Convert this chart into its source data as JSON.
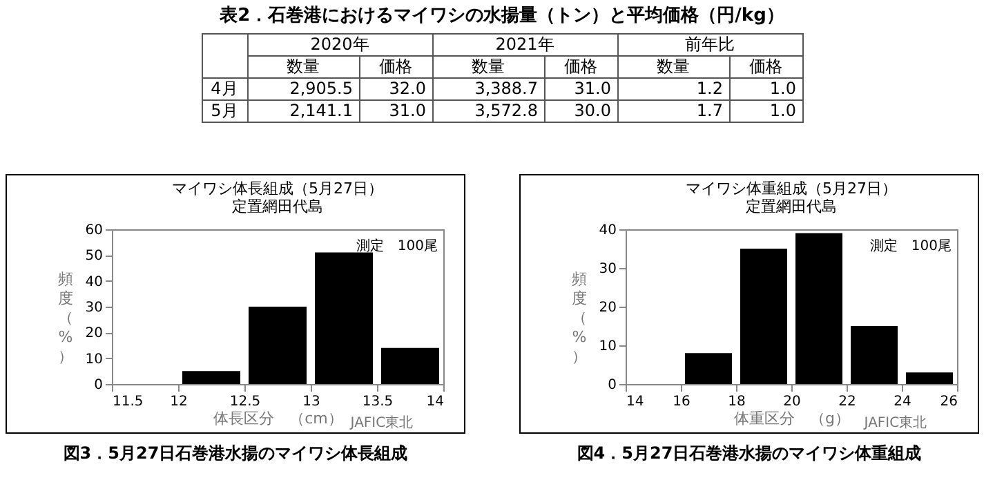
{
  "chart_data": [
    {
      "type": "other",
      "title": "表2．石巻港におけるマイワシの水揚量（トン）と平均価格（円/kg）",
      "annotations": [
        "2020年",
        "2021年",
        "前年比",
        "数量",
        "価格",
        "数量",
        "価格",
        "数量",
        "価格",
        "4月",
        "2,905.5",
        "32.0",
        "3,388.7",
        "31.0",
        "1.2",
        "1.0",
        "5月",
        "2,141.1",
        "31.0",
        "3,572.8",
        "30.0",
        "1.7",
        "1.0"
      ]
    },
    {
      "type": "histogram",
      "title": "マイワシ体長組成（5月27日）",
      "subtitle": "定置網田代島",
      "xlabel": "体長区分　（cm）",
      "ylabel": "頻度（%）",
      "bins": [
        11.5,
        12,
        12.5,
        13,
        13.5,
        14
      ],
      "values": [
        0,
        5,
        30,
        51,
        14
      ],
      "color": "#000000",
      "xlim": [
        11.5,
        14
      ],
      "xticks": [
        11.5,
        12,
        12.5,
        13,
        13.5,
        14
      ],
      "ylim": [
        0,
        60
      ],
      "yticks": [
        0,
        10,
        20,
        30,
        40,
        50,
        60
      ],
      "annotations": [
        "測定　100尾",
        "JAFIC東北",
        "図3．5月27日石巻港水揚のマイワシ体長組成"
      ]
    },
    {
      "type": "histogram",
      "title": "マイワシ体重組成（5月27日）",
      "subtitle": "定置網田代島",
      "xlabel": "体重区分　（g）",
      "ylabel": "頻度（%）",
      "bins": [
        14,
        16,
        18,
        20,
        22,
        24,
        26
      ],
      "values": [
        0,
        8,
        35,
        39,
        15,
        3
      ],
      "color": "#000000",
      "xlim": [
        14,
        26
      ],
      "xticks": [
        14,
        16,
        18,
        20,
        22,
        24,
        26
      ],
      "ylim": [
        0,
        40
      ],
      "yticks": [
        0,
        10,
        20,
        30,
        40
      ],
      "annotations": [
        "測定　100尾",
        "JAFIC東北",
        "図4．5月27日石巻港水揚のマイワシ体重組成"
      ]
    }
  ]
}
